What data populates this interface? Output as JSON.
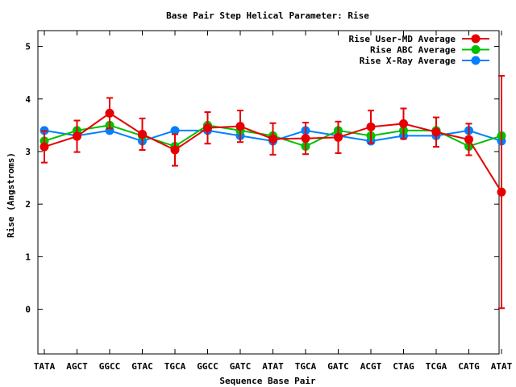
{
  "chart_data": {
    "type": "line",
    "title": "Base Pair Step Helical Parameter: Rise",
    "xlabel": "Sequence Base Pair",
    "ylabel": "Rise (Angstroms)",
    "categories": [
      "TATA",
      "AGCT",
      "GGCC",
      "GTAC",
      "TGCA",
      "GGCC",
      "GATC",
      "ATAT",
      "TGCA",
      "GATC",
      "ACGT",
      "CTAG",
      "TCGA",
      "CATG",
      "ATAT"
    ],
    "ylim": [
      -0.85,
      5.3
    ],
    "yticks": [
      0,
      1,
      2,
      3,
      4,
      5
    ],
    "grid": false,
    "legend_position": "top-right",
    "series": [
      {
        "name": "Rise User-MD Average",
        "color": "#e60000",
        "values": [
          3.09,
          3.29,
          3.73,
          3.33,
          3.03,
          3.45,
          3.48,
          3.24,
          3.25,
          3.27,
          3.47,
          3.53,
          3.37,
          3.23,
          2.23
        ],
        "errors": [
          0.3,
          0.3,
          0.29,
          0.3,
          0.3,
          0.3,
          0.3,
          0.3,
          0.3,
          0.3,
          0.31,
          0.29,
          0.28,
          0.3,
          2.21
        ]
      },
      {
        "name": "Rise ABC Average",
        "color": "#00c000",
        "values": [
          3.2,
          3.4,
          3.5,
          3.3,
          3.1,
          3.5,
          3.4,
          3.3,
          3.1,
          3.4,
          3.3,
          3.4,
          3.4,
          3.1,
          3.3
        ]
      },
      {
        "name": "Rise X-Ray Average",
        "color": "#0080ff",
        "values": [
          3.4,
          3.3,
          3.4,
          3.2,
          3.4,
          3.4,
          3.3,
          3.2,
          3.4,
          3.3,
          3.2,
          3.3,
          3.3,
          3.4,
          3.2
        ]
      }
    ]
  }
}
